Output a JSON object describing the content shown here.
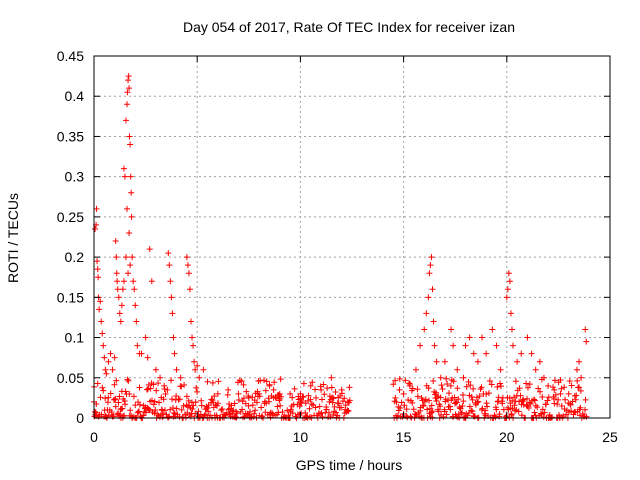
{
  "chart_data": {
    "type": "scatter",
    "title": "Day 054 of 2017, Rate Of TEC Index for receiver izan",
    "xlabel": "GPS time / hours",
    "ylabel": "ROTI / TECUs",
    "xlim": [
      0,
      25
    ],
    "ylim": [
      0,
      0.45
    ],
    "xticks": [
      0,
      5,
      10,
      15,
      20,
      25
    ],
    "xtick_labels": [
      "0",
      "5",
      "10",
      "15",
      "20",
      "25"
    ],
    "yticks": [
      0,
      0.05,
      0.1,
      0.15,
      0.2,
      0.25,
      0.3,
      0.35,
      0.4,
      0.45
    ],
    "ytick_labels": [
      "0",
      "0.05",
      "0.1",
      "0.15",
      "0.2",
      "0.25",
      "0.3",
      "0.35",
      "0.4",
      "0.45"
    ],
    "grid": true,
    "marker": "+",
    "color": "#ff0000",
    "series": [
      {
        "points": [
          [
            0.0,
            0.02
          ],
          [
            0.05,
            0.235
          ],
          [
            0.1,
            0.24
          ],
          [
            0.12,
            0.26
          ],
          [
            0.15,
            0.195
          ],
          [
            0.18,
            0.185
          ],
          [
            0.2,
            0.175
          ],
          [
            0.22,
            0.15
          ],
          [
            0.25,
            0.135
          ],
          [
            0.3,
            0.145
          ],
          [
            0.35,
            0.12
          ],
          [
            0.4,
            0.105
          ],
          [
            0.45,
            0.09
          ],
          [
            0.5,
            0.075
          ],
          [
            0.55,
            0.06
          ],
          [
            0.6,
            0.055
          ],
          [
            0.7,
            0.07
          ],
          [
            0.8,
            0.08
          ],
          [
            0.9,
            0.06
          ],
          [
            1.0,
            0.075
          ],
          [
            1.05,
            0.22
          ],
          [
            1.08,
            0.2
          ],
          [
            1.1,
            0.18
          ],
          [
            1.12,
            0.17
          ],
          [
            1.15,
            0.16
          ],
          [
            1.2,
            0.15
          ],
          [
            1.25,
            0.13
          ],
          [
            1.3,
            0.12
          ],
          [
            1.35,
            0.14
          ],
          [
            1.4,
            0.16
          ],
          [
            1.45,
            0.31
          ],
          [
            1.5,
            0.3
          ],
          [
            1.55,
            0.37
          ],
          [
            1.6,
            0.39
          ],
          [
            1.62,
            0.405
          ],
          [
            1.65,
            0.42
          ],
          [
            1.68,
            0.425
          ],
          [
            1.7,
            0.41
          ],
          [
            1.72,
            0.35
          ],
          [
            1.75,
            0.34
          ],
          [
            1.78,
            0.3
          ],
          [
            1.8,
            0.28
          ],
          [
            1.82,
            0.25
          ],
          [
            1.85,
            0.2
          ],
          [
            1.9,
            0.17
          ],
          [
            1.95,
            0.16
          ],
          [
            2.0,
            0.14
          ],
          [
            2.05,
            0.12
          ],
          [
            2.1,
            0.09
          ],
          [
            2.2,
            0.08
          ],
          [
            1.6,
            0.26
          ],
          [
            1.7,
            0.23
          ],
          [
            1.55,
            0.2
          ],
          [
            1.65,
            0.18
          ],
          [
            1.75,
            0.19
          ],
          [
            1.45,
            0.17
          ],
          [
            2.3,
            0.08
          ],
          [
            2.5,
            0.1
          ],
          [
            2.6,
            0.075
          ],
          [
            2.7,
            0.21
          ],
          [
            2.8,
            0.17
          ],
          [
            3.0,
            0.06
          ],
          [
            3.2,
            0.05
          ],
          [
            3.4,
            0.04
          ],
          [
            3.6,
            0.205
          ],
          [
            3.65,
            0.19
          ],
          [
            3.7,
            0.17
          ],
          [
            3.75,
            0.15
          ],
          [
            3.8,
            0.13
          ],
          [
            3.85,
            0.1
          ],
          [
            3.9,
            0.08
          ],
          [
            4.0,
            0.06
          ],
          [
            4.2,
            0.05
          ],
          [
            4.5,
            0.2
          ],
          [
            4.55,
            0.19
          ],
          [
            4.6,
            0.18
          ],
          [
            4.65,
            0.16
          ],
          [
            4.7,
            0.12
          ],
          [
            4.75,
            0.1
          ],
          [
            4.8,
            0.09
          ],
          [
            4.85,
            0.07
          ],
          [
            4.9,
            0.06
          ],
          [
            5.0,
            0.065
          ],
          [
            5.1,
            0.05
          ],
          [
            5.3,
            0.06
          ],
          [
            5.5,
            0.045
          ],
          [
            6.0,
            0.03
          ],
          [
            6.5,
            0.035
          ],
          [
            7.0,
            0.03
          ],
          [
            7.5,
            0.025
          ],
          [
            8.0,
            0.03
          ],
          [
            8.5,
            0.04
          ],
          [
            8.7,
            0.035
          ],
          [
            9.0,
            0.03
          ],
          [
            9.5,
            0.03
          ],
          [
            10.0,
            0.03
          ],
          [
            10.5,
            0.04
          ],
          [
            11.0,
            0.035
          ],
          [
            11.5,
            0.05
          ],
          [
            12.0,
            0.035
          ],
          [
            12.3,
            0.02
          ],
          [
            14.6,
            0.025
          ],
          [
            14.8,
            0.035
          ],
          [
            15.0,
            0.03
          ],
          [
            15.3,
            0.04
          ],
          [
            15.6,
            0.06
          ],
          [
            15.8,
            0.09
          ],
          [
            16.0,
            0.11
          ],
          [
            16.1,
            0.13
          ],
          [
            16.2,
            0.15
          ],
          [
            16.25,
            0.18
          ],
          [
            16.3,
            0.19
          ],
          [
            16.35,
            0.2
          ],
          [
            16.4,
            0.16
          ],
          [
            16.45,
            0.12
          ],
          [
            16.5,
            0.09
          ],
          [
            16.6,
            0.07
          ],
          [
            16.8,
            0.05
          ],
          [
            17.0,
            0.07
          ],
          [
            17.3,
            0.11
          ],
          [
            17.4,
            0.09
          ],
          [
            17.6,
            0.06
          ],
          [
            17.9,
            0.05
          ],
          [
            18.0,
            0.09
          ],
          [
            18.2,
            0.1
          ],
          [
            18.4,
            0.08
          ],
          [
            18.6,
            0.07
          ],
          [
            18.8,
            0.1
          ],
          [
            19.0,
            0.08
          ],
          [
            19.3,
            0.11
          ],
          [
            19.5,
            0.09
          ],
          [
            19.7,
            0.06
          ],
          [
            20.0,
            0.15
          ],
          [
            20.05,
            0.16
          ],
          [
            20.1,
            0.18
          ],
          [
            20.15,
            0.17
          ],
          [
            20.2,
            0.13
          ],
          [
            20.25,
            0.11
          ],
          [
            20.3,
            0.09
          ],
          [
            20.5,
            0.07
          ],
          [
            20.7,
            0.08
          ],
          [
            21.0,
            0.1
          ],
          [
            21.2,
            0.08
          ],
          [
            21.4,
            0.06
          ],
          [
            21.6,
            0.07
          ],
          [
            21.8,
            0.05
          ],
          [
            22.0,
            0.04
          ],
          [
            22.3,
            0.035
          ],
          [
            22.6,
            0.03
          ],
          [
            23.0,
            0.03
          ],
          [
            23.4,
            0.06
          ],
          [
            23.5,
            0.07
          ],
          [
            23.6,
            0.05
          ],
          [
            23.8,
            0.11
          ],
          [
            23.85,
            0.095
          ]
        ]
      }
    ],
    "background_band": {
      "segments": [
        [
          0,
          12.4
        ],
        [
          14.5,
          23.9
        ]
      ],
      "typical_max": 0.035
    }
  }
}
